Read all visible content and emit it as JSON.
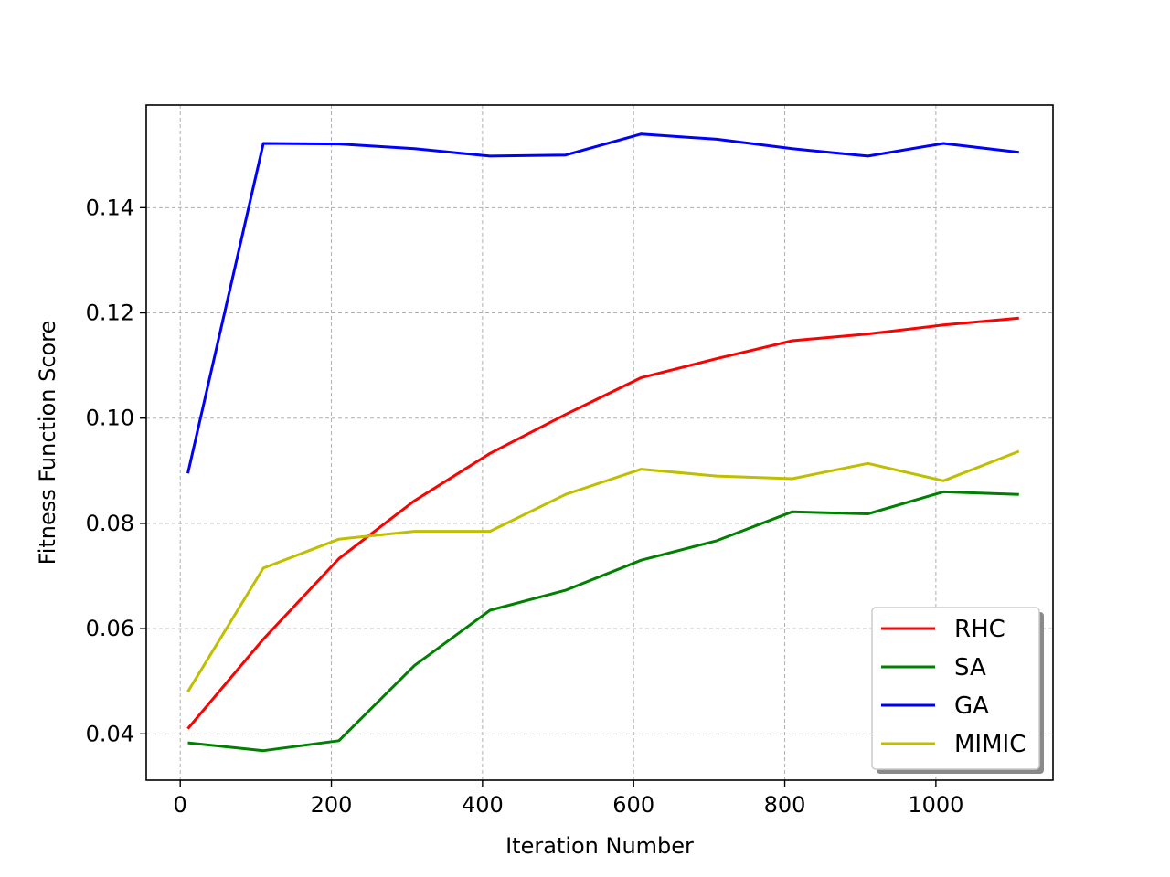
{
  "chart_data": {
    "type": "line",
    "title": "",
    "xlabel": "Iteration Number",
    "ylabel": "Fitness Function Score",
    "xlim": [
      -45,
      1155
    ],
    "ylim": [
      0.0312,
      0.1595
    ],
    "xticks": [
      0,
      200,
      400,
      600,
      800,
      1000
    ],
    "yticks": [
      0.04,
      0.06,
      0.08,
      0.1,
      0.12,
      0.14
    ],
    "xtick_labels": [
      "0",
      "200",
      "400",
      "600",
      "800",
      "1000"
    ],
    "ytick_labels": [
      "0.04",
      "0.06",
      "0.08",
      "0.10",
      "0.12",
      "0.14"
    ],
    "grid": true,
    "legend_position": "lower-right",
    "x": [
      10,
      110,
      210,
      310,
      410,
      510,
      610,
      710,
      810,
      910,
      1010,
      1110
    ],
    "series": [
      {
        "name": "RHC",
        "color": "#ff0000",
        "values": [
          0.041,
          0.058,
          0.0733,
          0.0843,
          0.0933,
          0.1007,
          0.1077,
          0.1113,
          0.1147,
          0.116,
          0.1177,
          0.119
        ]
      },
      {
        "name": "SA",
        "color": "#008000",
        "values": [
          0.0383,
          0.0368,
          0.0387,
          0.053,
          0.0635,
          0.0673,
          0.073,
          0.0767,
          0.0822,
          0.0818,
          0.086,
          0.0855
        ]
      },
      {
        "name": "GA",
        "color": "#0000ff",
        "values": [
          0.0895,
          0.1522,
          0.1521,
          0.1512,
          0.1498,
          0.15,
          0.154,
          0.153,
          0.1512,
          0.1498,
          0.1522,
          0.1505
        ]
      },
      {
        "name": "MIMIC",
        "color": "#bfbf00",
        "values": [
          0.048,
          0.0715,
          0.077,
          0.0785,
          0.0785,
          0.0855,
          0.0903,
          0.089,
          0.0885,
          0.0914,
          0.0881,
          0.0937
        ]
      }
    ]
  }
}
